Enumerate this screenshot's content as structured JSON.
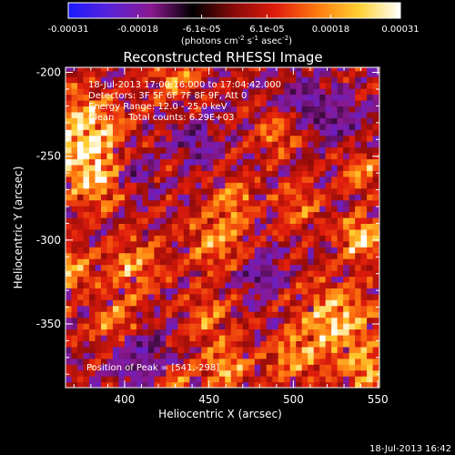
{
  "chart_data": {
    "type": "heatmap",
    "title": "Reconstructed RHESSI Image",
    "xlabel": "Heliocentric X (arcsec)",
    "ylabel": "Heliocentric Y (arcsec)",
    "xlim": [
      365,
      551
    ],
    "ylim": [
      -388,
      -197
    ],
    "x_ticks": [
      "400",
      "450",
      "500",
      "550"
    ],
    "x_tick_values": [
      400,
      450,
      500,
      550
    ],
    "y_ticks": [
      "-200",
      "-250",
      "-300",
      "-350"
    ],
    "y_tick_values": [
      -200,
      -250,
      -300,
      -350
    ],
    "colorbar": {
      "ticks": [
        "-0.00031",
        "-0.00018",
        "-6.1e-05",
        "6.1e-05",
        "0.00018",
        "0.00031"
      ],
      "tick_values": [
        -0.00031,
        -0.00018,
        -6.1e-05,
        6.1e-05,
        0.00018,
        0.00031
      ],
      "range": [
        -0.00031,
        0.00031
      ],
      "units_prefix": "(photons cm",
      "units_exp1": "-2",
      "units_mid": " s",
      "units_exp2": "-1",
      "units_mid2": " asec",
      "units_exp3": "-2",
      "units_suffix": ")",
      "colors": [
        "#1a1aff",
        "#5a22d8",
        "#8a1890",
        "#000000",
        "#8a0a0a",
        "#e01c0c",
        "#ff7a10",
        "#ffd030",
        "#ffffff"
      ]
    },
    "annotations": [
      "18-Jul-2013 17:00:16.000 to 17:04:42.000",
      "Detectors: 3F 5F 6F 7F 8F 9F, Att 0",
      "Energy Range: 12.0 - 25.0 keV",
      "Clean     Total counts: 6.29E+03"
    ],
    "peak_label": "Position of Peak = [541,-298]",
    "peak": [
      541,
      -298
    ],
    "grid": false,
    "legend": "none",
    "hot_regions": [
      {
        "x": 375,
        "y": -235,
        "w": 1.0,
        "r": 22
      },
      {
        "x": 385,
        "y": -262,
        "w": 0.9,
        "r": 18
      },
      {
        "x": 368,
        "y": -318,
        "w": 0.7,
        "r": 12
      },
      {
        "x": 405,
        "y": -315,
        "w": 0.65,
        "r": 16
      },
      {
        "x": 395,
        "y": -350,
        "w": 0.55,
        "r": 16
      },
      {
        "x": 430,
        "y": -205,
        "w": 0.55,
        "r": 14
      },
      {
        "x": 455,
        "y": -300,
        "w": 0.6,
        "r": 18
      },
      {
        "x": 465,
        "y": -275,
        "w": 0.5,
        "r": 12
      },
      {
        "x": 450,
        "y": -345,
        "w": 0.5,
        "r": 14
      },
      {
        "x": 460,
        "y": -375,
        "w": 0.7,
        "r": 14
      },
      {
        "x": 490,
        "y": -235,
        "w": 0.5,
        "r": 12
      },
      {
        "x": 505,
        "y": -280,
        "w": 0.45,
        "r": 14
      },
      {
        "x": 540,
        "y": -298,
        "w": 1.0,
        "r": 12
      },
      {
        "x": 540,
        "y": -260,
        "w": 0.6,
        "r": 12
      },
      {
        "x": 525,
        "y": -348,
        "w": 0.85,
        "r": 22
      },
      {
        "x": 545,
        "y": -378,
        "w": 0.75,
        "r": 14
      },
      {
        "x": 500,
        "y": -370,
        "w": 0.6,
        "r": 14
      },
      {
        "x": 430,
        "y": -385,
        "w": 0.5,
        "r": 10
      }
    ],
    "cold_regions": [
      {
        "x": 408,
        "y": -368,
        "w": 0.7,
        "r": 14
      },
      {
        "x": 525,
        "y": -227,
        "w": 0.6,
        "r": 12
      },
      {
        "x": 400,
        "y": -258,
        "w": 0.45,
        "r": 14
      },
      {
        "x": 480,
        "y": -320,
        "w": 0.4,
        "r": 12
      },
      {
        "x": 505,
        "y": -215,
        "w": 0.45,
        "r": 12
      },
      {
        "x": 440,
        "y": -240,
        "w": 0.35,
        "r": 12
      }
    ]
  },
  "footer": {
    "timestamp": "18-Jul-2013 16:42"
  }
}
